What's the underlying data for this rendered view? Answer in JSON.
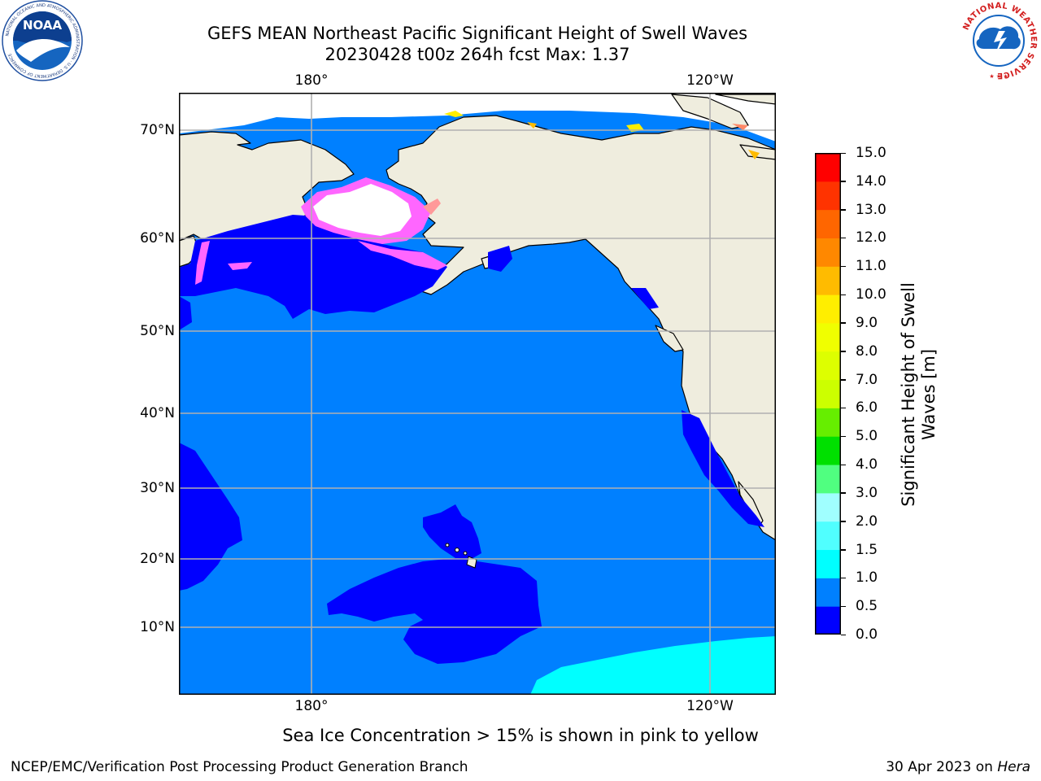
{
  "header": {
    "title_line1": "GEFS MEAN Northeast Pacific Significant Height of Swell Waves",
    "title_line2": "20230428 t00z 264h fcst   Max: 1.37"
  },
  "logos": {
    "left": {
      "text": "NOAA",
      "ring_text": "NATIONAL OCEANIC AND ATMOSPHERIC ADMINISTRATION · U.S. DEPARTMENT OF COMMERCE"
    },
    "right": {
      "ring_text": "NATIONAL WEATHER SERVICE"
    }
  },
  "map": {
    "lat_labels": [
      "70°N",
      "60°N",
      "50°N",
      "40°N",
      "30°N",
      "20°N",
      "10°N"
    ],
    "lon_labels_top": [
      "180°",
      "120°W"
    ],
    "lon_labels_bottom": [
      "180°",
      "120°W"
    ],
    "colors": {
      "land": "#efedde",
      "ocean_0_5": "#0000ff",
      "ocean_0_5_1_0": "#0080ff",
      "ocean_1_5": "#00ffff",
      "ice": "#ff66ff",
      "ice_white": "#ffffff",
      "grid": "#b0b0b0",
      "coast": "#000000"
    }
  },
  "colorbar": {
    "title": "Significant Height of Swell Waves [m]",
    "title_line1": "Significant Height of Swell",
    "title_line2": "Waves [m]",
    "tick_labels": [
      "15.0",
      "14.0",
      "13.0",
      "12.0",
      "11.0",
      "10.0",
      "9.0",
      "8.0",
      "7.0",
      "6.0",
      "5.0",
      "4.0",
      "3.0",
      "2.0",
      "1.5",
      "1.0",
      "0.5",
      "0.0"
    ],
    "bins": [
      {
        "from": 0.0,
        "to": 0.5,
        "color": "#0000ff"
      },
      {
        "from": 0.5,
        "to": 1.0,
        "color": "#0080ff"
      },
      {
        "from": 1.0,
        "to": 1.5,
        "color": "#00ffff"
      },
      {
        "from": 1.5,
        "to": 2.0,
        "color": "#50ffff"
      },
      {
        "from": 2.0,
        "to": 3.0,
        "color": "#a0ffff"
      },
      {
        "from": 3.0,
        "to": 4.0,
        "color": "#50ff80"
      },
      {
        "from": 4.0,
        "to": 5.0,
        "color": "#00e000"
      },
      {
        "from": 5.0,
        "to": 6.0,
        "color": "#66ee00"
      },
      {
        "from": 6.0,
        "to": 7.0,
        "color": "#ccff00"
      },
      {
        "from": 7.0,
        "to": 8.0,
        "color": "#ddff00"
      },
      {
        "from": 8.0,
        "to": 9.0,
        "color": "#f0ff00"
      },
      {
        "from": 9.0,
        "to": 10.0,
        "color": "#ffee00"
      },
      {
        "from": 10.0,
        "to": 11.0,
        "color": "#ffbb00"
      },
      {
        "from": 11.0,
        "to": 12.0,
        "color": "#ff8800"
      },
      {
        "from": 12.0,
        "to": 13.0,
        "color": "#ff6600"
      },
      {
        "from": 13.0,
        "to": 14.0,
        "color": "#ff3300"
      },
      {
        "from": 14.0,
        "to": 15.0,
        "color": "#ff0000"
      }
    ]
  },
  "footer": {
    "note": "Sea Ice Concentration > 15% is shown in pink to yellow",
    "credit": "NCEP/EMC/Verification Post Processing Product Generation Branch",
    "date": "30 Apr 2023 on ",
    "host": "Hera"
  }
}
